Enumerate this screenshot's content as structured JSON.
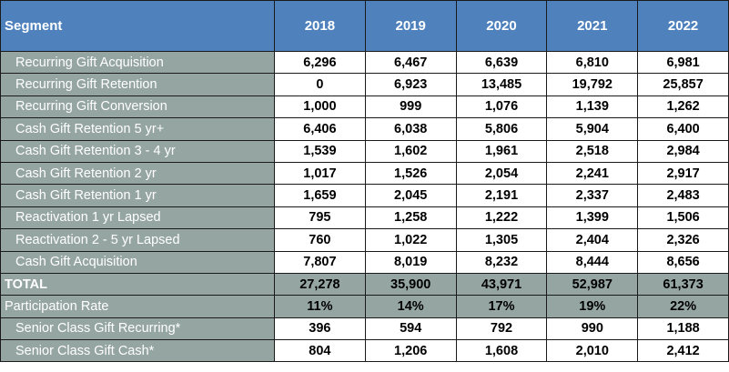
{
  "table": {
    "header": {
      "segment": "Segment",
      "years": [
        "2018",
        "2019",
        "2020",
        "2021",
        "2022"
      ]
    },
    "rows": [
      {
        "label": "Recurring Gift Acquisition",
        "values": [
          "6,296",
          "6,467",
          "6,639",
          "6,810",
          "6,981"
        ]
      },
      {
        "label": "Recurring Gift Retention",
        "values": [
          "0",
          "6,923",
          "13,485",
          "19,792",
          "25,857"
        ]
      },
      {
        "label": "Recurring Gift Conversion",
        "values": [
          "1,000",
          "999",
          "1,076",
          "1,139",
          "1,262"
        ]
      },
      {
        "label": "Cash Gift Retention 5 yr+",
        "values": [
          "6,406",
          "6,038",
          "5,806",
          "5,904",
          "6,400"
        ]
      },
      {
        "label": "Cash Gift Retention 3 - 4 yr",
        "values": [
          "1,539",
          "1,602",
          "1,961",
          "2,518",
          "2,984"
        ]
      },
      {
        "label": "Cash Gift Retention 2 yr",
        "values": [
          "1,017",
          "1,526",
          "2,054",
          "2,241",
          "2,917"
        ]
      },
      {
        "label": "Cash Gift Retention 1 yr",
        "values": [
          "1,659",
          "2,045",
          "2,191",
          "2,337",
          "2,483"
        ]
      },
      {
        "label": "Reactivation 1 yr Lapsed",
        "values": [
          "795",
          "1,258",
          "1,222",
          "1,399",
          "1,506"
        ]
      },
      {
        "label": "Reactivation 2 - 5 yr Lapsed",
        "values": [
          "760",
          "1,022",
          "1,305",
          "2,404",
          "2,326"
        ]
      },
      {
        "label": "Cash Gift Acquisition",
        "values": [
          "7,807",
          "8,019",
          "8,232",
          "8,444",
          "8,656"
        ]
      }
    ],
    "total": {
      "label": "TOTAL",
      "values": [
        "27,278",
        "35,900",
        "43,971",
        "52,987",
        "61,373"
      ]
    },
    "participation": {
      "label": "Participation Rate",
      "values": [
        "11%",
        "14%",
        "17%",
        "19%",
        "22%"
      ]
    },
    "senior": [
      {
        "label": "Senior Class Gift Recurring*",
        "values": [
          "396",
          "594",
          "792",
          "990",
          "1,188"
        ]
      },
      {
        "label": "Senior Class Gift Cash*",
        "values": [
          "804",
          "1,206",
          "1,608",
          "2,010",
          "2,412"
        ]
      }
    ],
    "colors": {
      "header_bg": "#4f81bd",
      "label_bg": "#95a5a1",
      "cell_bg": "#ffffff"
    }
  }
}
